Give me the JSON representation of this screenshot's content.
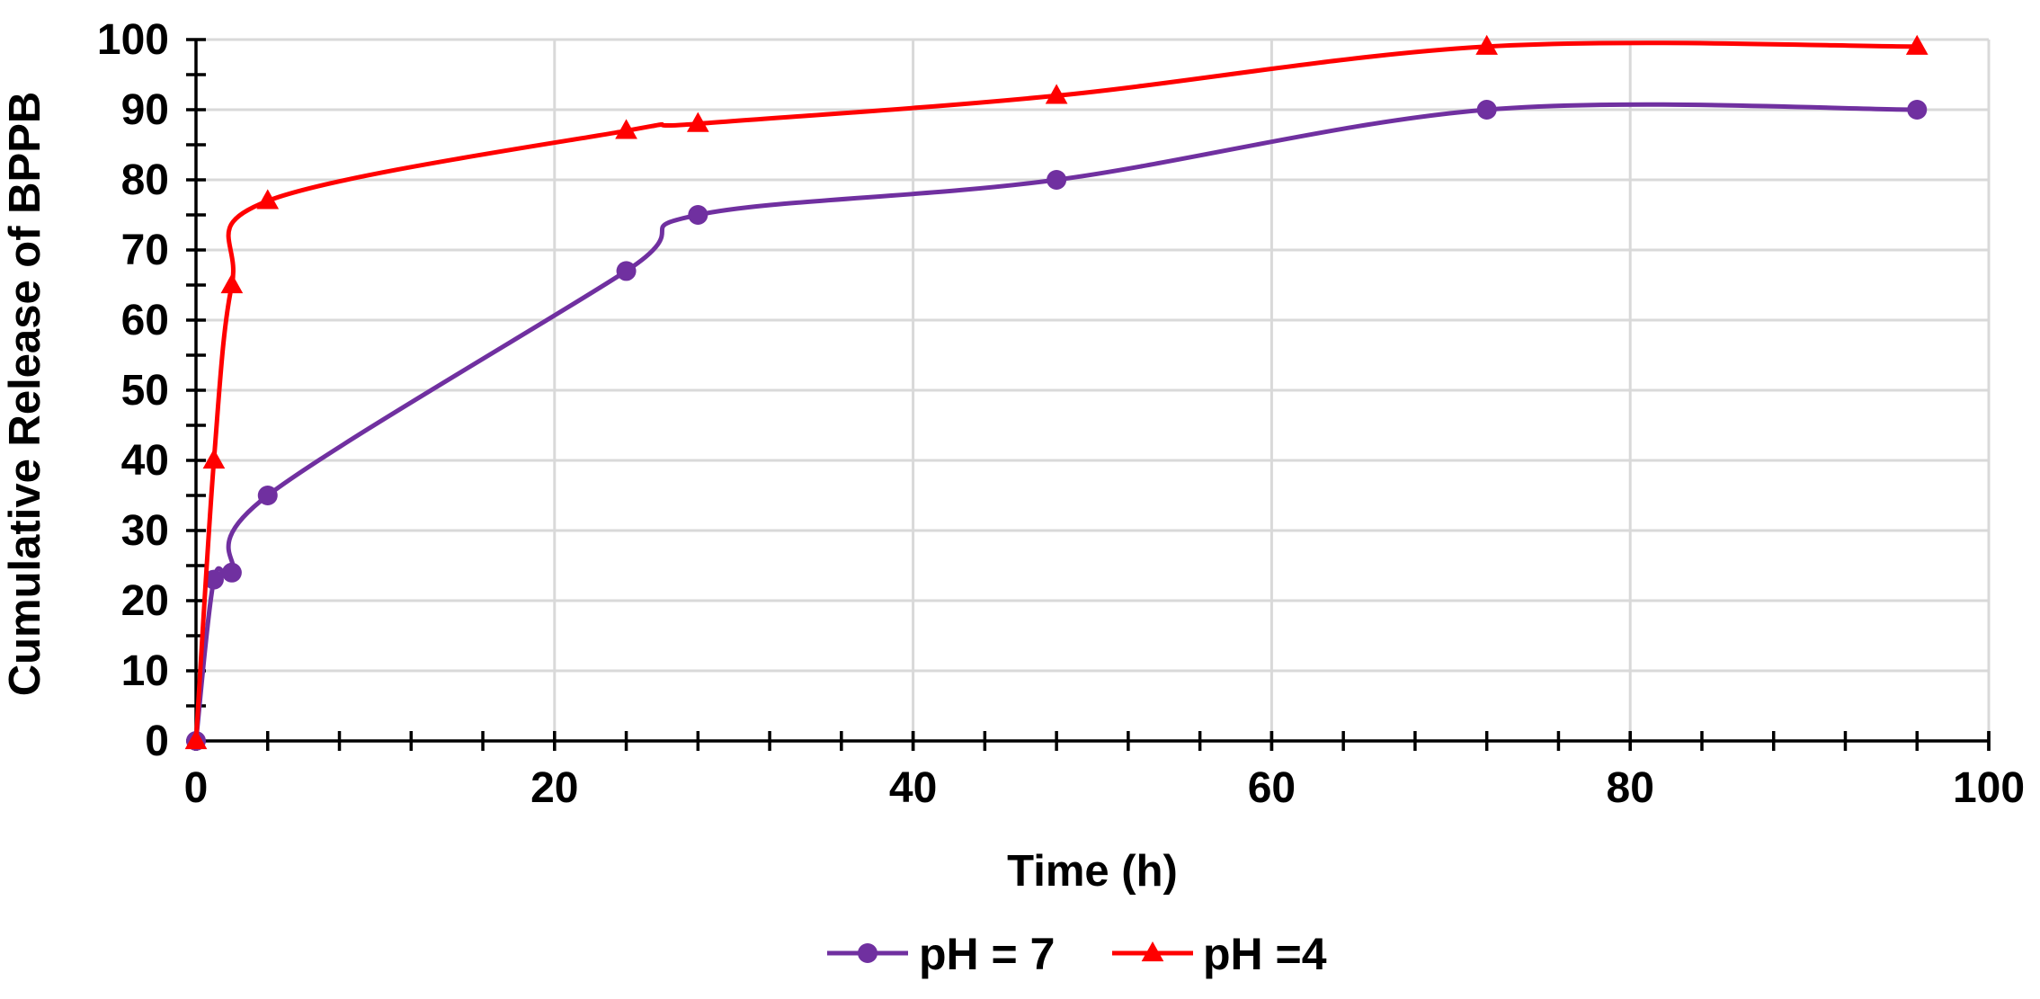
{
  "chart_data": {
    "type": "line",
    "title": "",
    "xlabel": "Time (h)",
    "ylabel": "Cumulative Release of BPPB",
    "xlim": [
      0,
      100
    ],
    "ylim": [
      0,
      100
    ],
    "xticks": [
      0,
      20,
      40,
      60,
      80,
      100
    ],
    "yticks": [
      0,
      10,
      20,
      30,
      40,
      50,
      60,
      70,
      80,
      90,
      100
    ],
    "x_minor_step": 4,
    "y_minor_step": 5,
    "grid": true,
    "smooth": true,
    "legend_position": "bottom-center",
    "series": [
      {
        "name": "pH = 7",
        "color": "#7030a0",
        "marker": "circle",
        "x": [
          0,
          1,
          2,
          4,
          24,
          28,
          48,
          72,
          96
        ],
        "y": [
          0,
          23,
          24,
          35,
          67,
          75,
          80,
          90,
          90
        ]
      },
      {
        "name": "pH =4",
        "color": "#ff0000",
        "marker": "triangle",
        "x": [
          0,
          1,
          2,
          4,
          24,
          28,
          48,
          72,
          96
        ],
        "y": [
          0,
          40,
          65,
          77,
          87,
          88,
          92,
          99,
          99
        ]
      }
    ]
  }
}
